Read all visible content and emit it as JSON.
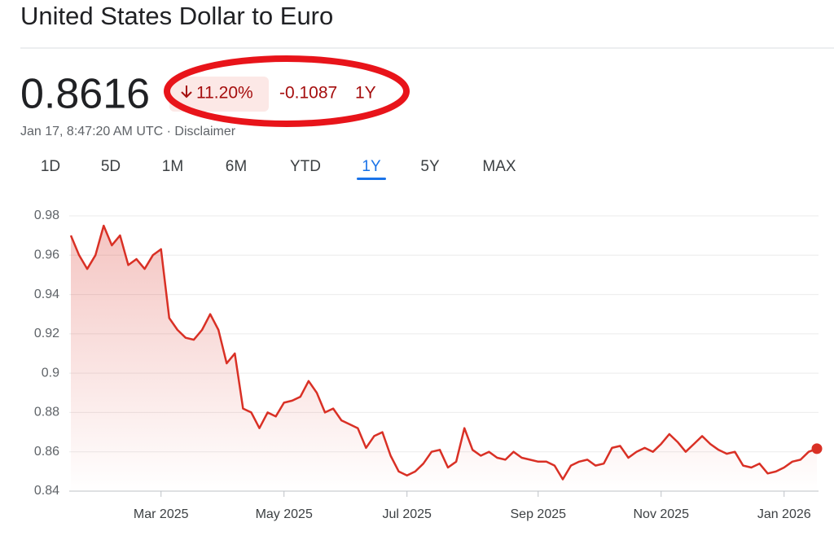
{
  "header": {
    "title": "United States Dollar to Euro",
    "price": 0.8616,
    "change_pct": "11.20%",
    "change_abs": -0.1087,
    "period": "1Y",
    "timestamp": "Jan 17, 8:47:20 AM UTC · Disclaimer"
  },
  "tabs": [
    "1D",
    "5D",
    "1M",
    "6M",
    "YTD",
    "1Y",
    "5Y",
    "MAX"
  ],
  "selected_tab": "1Y",
  "chart_data": {
    "type": "line",
    "color": "#d93025",
    "grid": true,
    "categories": [
      null,
      null,
      null,
      null,
      null,
      null,
      null,
      null,
      null,
      null,
      null,
      "Mar 2025",
      null,
      null,
      null,
      null,
      null,
      null,
      null,
      null,
      null,
      null,
      null,
      null,
      null,
      null,
      "May 2025",
      null,
      null,
      null,
      null,
      null,
      null,
      null,
      null,
      null,
      null,
      null,
      null,
      null,
      null,
      "Jul 2025",
      null,
      null,
      null,
      null,
      null,
      null,
      null,
      null,
      null,
      null,
      null,
      null,
      null,
      null,
      null,
      "Sep 2025",
      null,
      null,
      null,
      null,
      null,
      null,
      null,
      null,
      null,
      null,
      null,
      null,
      null,
      null,
      "Nov 2025",
      null,
      null,
      null,
      null,
      null,
      null,
      null,
      null,
      null,
      null,
      null,
      null,
      null,
      null,
      "Jan 2026",
      null,
      null,
      null,
      null
    ],
    "values": [
      0.97,
      0.96,
      0.953,
      0.96,
      0.975,
      0.965,
      0.97,
      0.955,
      0.958,
      0.953,
      0.96,
      0.963,
      0.928,
      0.922,
      0.918,
      0.917,
      0.922,
      0.93,
      0.922,
      0.905,
      0.91,
      0.882,
      0.88,
      0.872,
      0.88,
      0.878,
      0.885,
      0.886,
      0.888,
      0.896,
      0.89,
      0.88,
      0.882,
      0.876,
      0.874,
      0.872,
      0.862,
      0.868,
      0.87,
      0.858,
      0.85,
      0.848,
      0.85,
      0.854,
      0.86,
      0.861,
      0.852,
      0.855,
      0.872,
      0.861,
      0.858,
      0.86,
      0.857,
      0.856,
      0.86,
      0.857,
      0.856,
      0.855,
      0.855,
      0.853,
      0.846,
      0.853,
      0.855,
      0.856,
      0.853,
      0.854,
      0.862,
      0.863,
      0.857,
      0.86,
      0.862,
      0.86,
      0.864,
      0.869,
      0.865,
      0.86,
      0.864,
      0.868,
      0.864,
      0.861,
      0.859,
      0.86,
      0.853,
      0.852,
      0.854,
      0.849,
      0.85,
      0.852,
      0.855,
      0.856,
      0.86,
      0.8616
    ],
    "ylim": [
      0.84,
      0.98
    ],
    "yticks": [
      0.84,
      0.86,
      0.88,
      0.9,
      0.92,
      0.94,
      0.96,
      0.98
    ]
  }
}
